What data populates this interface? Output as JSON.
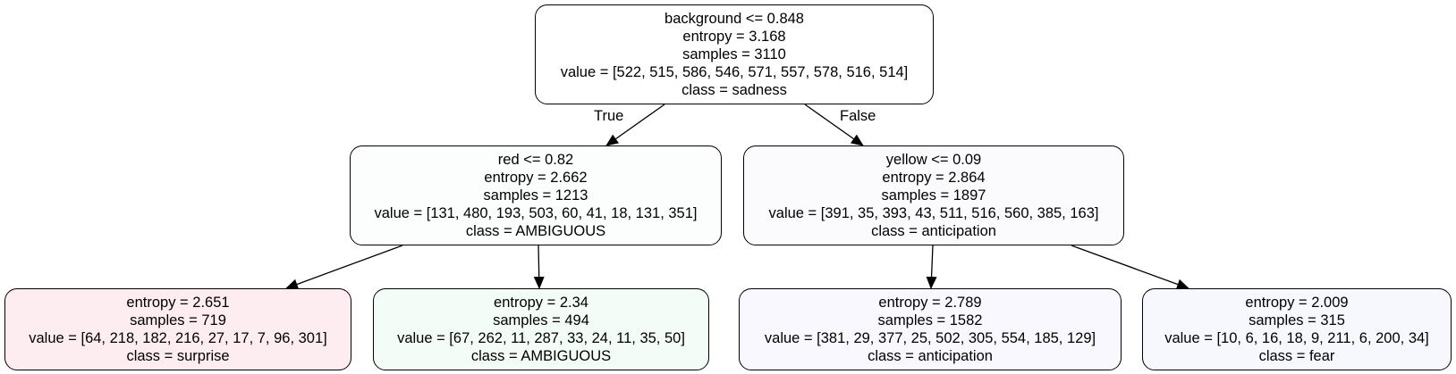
{
  "tree": {
    "nodes": [
      {
        "id": "root",
        "fill": "#ffffff",
        "lines": [
          "background <= 0.848",
          "entropy = 3.168",
          "samples = 3110",
          "value = [522, 515, 586, 546, 571, 557, 578, 516, 514]",
          "class = sadness"
        ]
      },
      {
        "id": "n1",
        "fill": "#fbfefd",
        "lines": [
          "red <= 0.82",
          "entropy = 2.662",
          "samples = 1213",
          "value = [131, 480, 193, 503, 60, 41, 18, 131, 351]",
          "class = AMBIGUOUS"
        ]
      },
      {
        "id": "n2",
        "fill": "#fbfbfe",
        "lines": [
          "yellow <= 0.09",
          "entropy = 2.864",
          "samples = 1897",
          "value = [391, 35, 393, 43, 511, 516, 560, 385, 163]",
          "class = anticipation"
        ]
      },
      {
        "id": "n3",
        "fill": "#fdedf0",
        "lines": [
          "entropy = 2.651",
          "samples = 719",
          "value = [64, 218, 182, 216, 27, 17, 7, 96, 301]",
          "class = surprise"
        ]
      },
      {
        "id": "n4",
        "fill": "#f4fcf7",
        "lines": [
          "entropy = 2.34",
          "samples = 494",
          "value = [67, 262, 11, 287, 33, 24, 11, 35, 50]",
          "class = AMBIGUOUS"
        ]
      },
      {
        "id": "n5",
        "fill": "#f9f8fe",
        "lines": [
          "entropy = 2.789",
          "samples = 1582",
          "value = [381, 29, 377, 25, 502, 305, 554, 185, 129]",
          "class = anticipation"
        ]
      },
      {
        "id": "n6",
        "fill": "#f6f8fe",
        "lines": [
          "entropy = 2.009",
          "samples = 315",
          "value = [10, 6, 16, 18, 9, 211, 6, 200, 34]",
          "class = fear"
        ]
      }
    ],
    "edges": [
      {
        "from": "root",
        "to": "n1",
        "label": "True"
      },
      {
        "from": "root",
        "to": "n2",
        "label": "False"
      },
      {
        "from": "n1",
        "to": "n3",
        "label": ""
      },
      {
        "from": "n1",
        "to": "n4",
        "label": ""
      },
      {
        "from": "n2",
        "to": "n5",
        "label": ""
      },
      {
        "from": "n2",
        "to": "n6",
        "label": ""
      }
    ]
  }
}
